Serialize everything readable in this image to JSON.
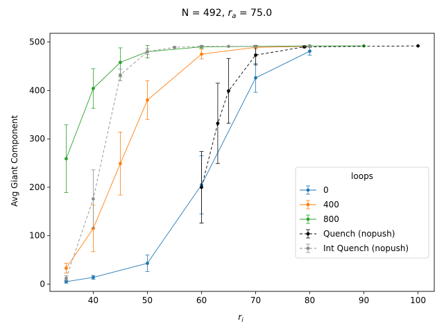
{
  "chart_data": {
    "type": "line",
    "title_prefix": "N = 492, ",
    "title_var": "r",
    "title_sub": "a",
    "title_suffix": " = 75.0",
    "xlabel_var": "r",
    "xlabel_sub": "i",
    "ylabel": "Avg Giant Component",
    "xlim": [
      32,
      103
    ],
    "ylim": [
      -15,
      518
    ],
    "xticks": [
      40,
      50,
      60,
      70,
      80,
      90,
      100
    ],
    "yticks": [
      0,
      100,
      200,
      300,
      400,
      500
    ],
    "legend": {
      "title": "loops",
      "placement": "center-right"
    },
    "series": [
      {
        "name": "0",
        "color": "#1f77b4",
        "dash": "",
        "x": [
          35,
          40,
          50,
          60,
          70,
          80
        ],
        "y": [
          5,
          14,
          43,
          205,
          426,
          481
        ],
        "err": [
          3,
          4,
          17,
          60,
          30,
          8
        ]
      },
      {
        "name": "400",
        "color": "#ff7f0e",
        "dash": "",
        "x": [
          35,
          40,
          45,
          50,
          60,
          70,
          80
        ],
        "y": [
          33,
          115,
          249,
          380,
          475,
          489,
          491
        ],
        "err": [
          10,
          48,
          65,
          40,
          10,
          3,
          1
        ]
      },
      {
        "name": "800",
        "color": "#2ca02c",
        "dash": "",
        "x": [
          35,
          40,
          45,
          50,
          60,
          70,
          80,
          90
        ],
        "y": [
          259,
          404,
          458,
          480,
          490,
          491,
          492,
          492
        ],
        "err": [
          70,
          41,
          30,
          13,
          3,
          1,
          0,
          0
        ]
      },
      {
        "name": "Quench (nopush)",
        "color": "#000000",
        "dash": "4,3",
        "x": [
          60,
          63,
          65,
          70,
          79,
          100
        ],
        "y": [
          200,
          332,
          399,
          473,
          490,
          492
        ],
        "err": [
          74,
          83,
          67,
          20,
          2,
          0
        ]
      },
      {
        "name": "Int Quench (nopush)",
        "color": "#8c8c8c",
        "dash": "4,3",
        "x": [
          35,
          40,
          45,
          50,
          55,
          60,
          65,
          70,
          80
        ],
        "y": [
          12,
          176,
          432,
          480,
          489,
          491,
          491,
          491,
          491
        ],
        "err": [
          5,
          60,
          12,
          6,
          1,
          0,
          0,
          0,
          0
        ]
      }
    ]
  }
}
